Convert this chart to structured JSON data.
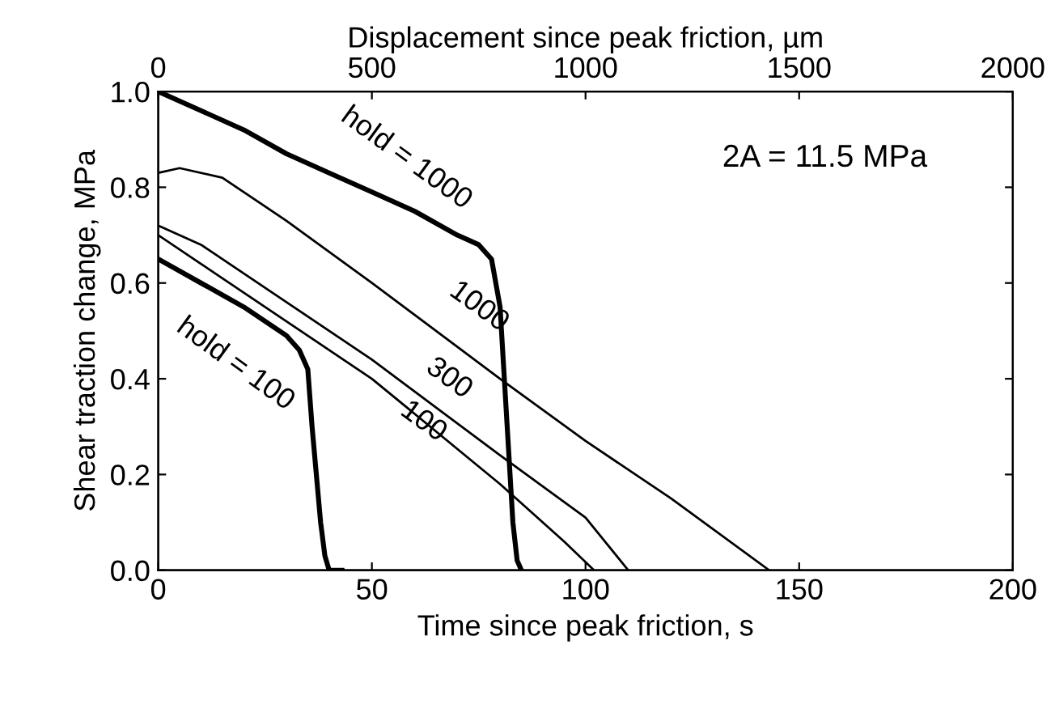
{
  "chart_data": {
    "type": "line",
    "xlabel": "Time since peak friction, s",
    "ylabel": "Shear traction change, MPa",
    "x2label": "Displacement since peak friction, µm",
    "xlim": [
      0,
      200
    ],
    "xticks": [
      0,
      50,
      100,
      150,
      200
    ],
    "x2lim": [
      0,
      2000
    ],
    "x2ticks": [
      0,
      500,
      1000,
      1500,
      2000
    ],
    "ylim": [
      0,
      1.0
    ],
    "yticks": [
      {
        "value": 0,
        "label": "0.0"
      },
      0.2,
      0.4,
      0.6,
      0.8,
      {
        "value": 1.0,
        "label": "1.0"
      }
    ],
    "grid": false,
    "legend": false,
    "marker": "none",
    "line_style": "solid",
    "series": [
      {
        "name": "hold = 1000",
        "color": "#000000",
        "x": [
          0,
          10,
          20,
          30,
          40,
          50,
          60,
          70,
          75,
          78,
          80,
          81,
          82,
          83,
          84,
          85
        ],
        "values": [
          1.0,
          0.96,
          0.92,
          0.87,
          0.83,
          0.79,
          0.75,
          0.7,
          0.68,
          0.65,
          0.55,
          0.4,
          0.25,
          0.1,
          0.02,
          0
        ]
      },
      {
        "name": "1000",
        "color": "#000000",
        "x": [
          0,
          5,
          15,
          30,
          50,
          80,
          100,
          120,
          143
        ],
        "values": [
          0.83,
          0.84,
          0.82,
          0.73,
          0.6,
          0.4,
          0.27,
          0.15,
          0
        ]
      },
      {
        "name": "300",
        "color": "#000000",
        "x": [
          0,
          10,
          30,
          50,
          80,
          100,
          110
        ],
        "values": [
          0.72,
          0.68,
          0.56,
          0.44,
          0.24,
          0.11,
          0
        ]
      },
      {
        "name": "100",
        "color": "#000000",
        "x": [
          0,
          10,
          30,
          50,
          80,
          95,
          102
        ],
        "values": [
          0.7,
          0.64,
          0.52,
          0.4,
          0.18,
          0.06,
          0
        ]
      },
      {
        "name": "hold = 100",
        "color": "#000000",
        "x": [
          0,
          10,
          20,
          30,
          33,
          35,
          36,
          37,
          38,
          39,
          40,
          43
        ],
        "values": [
          0.65,
          0.6,
          0.55,
          0.49,
          0.46,
          0.42,
          0.3,
          0.2,
          0.1,
          0.03,
          0,
          0
        ]
      }
    ],
    "annotations": [
      "2A = 11.5 MPa"
    ]
  }
}
